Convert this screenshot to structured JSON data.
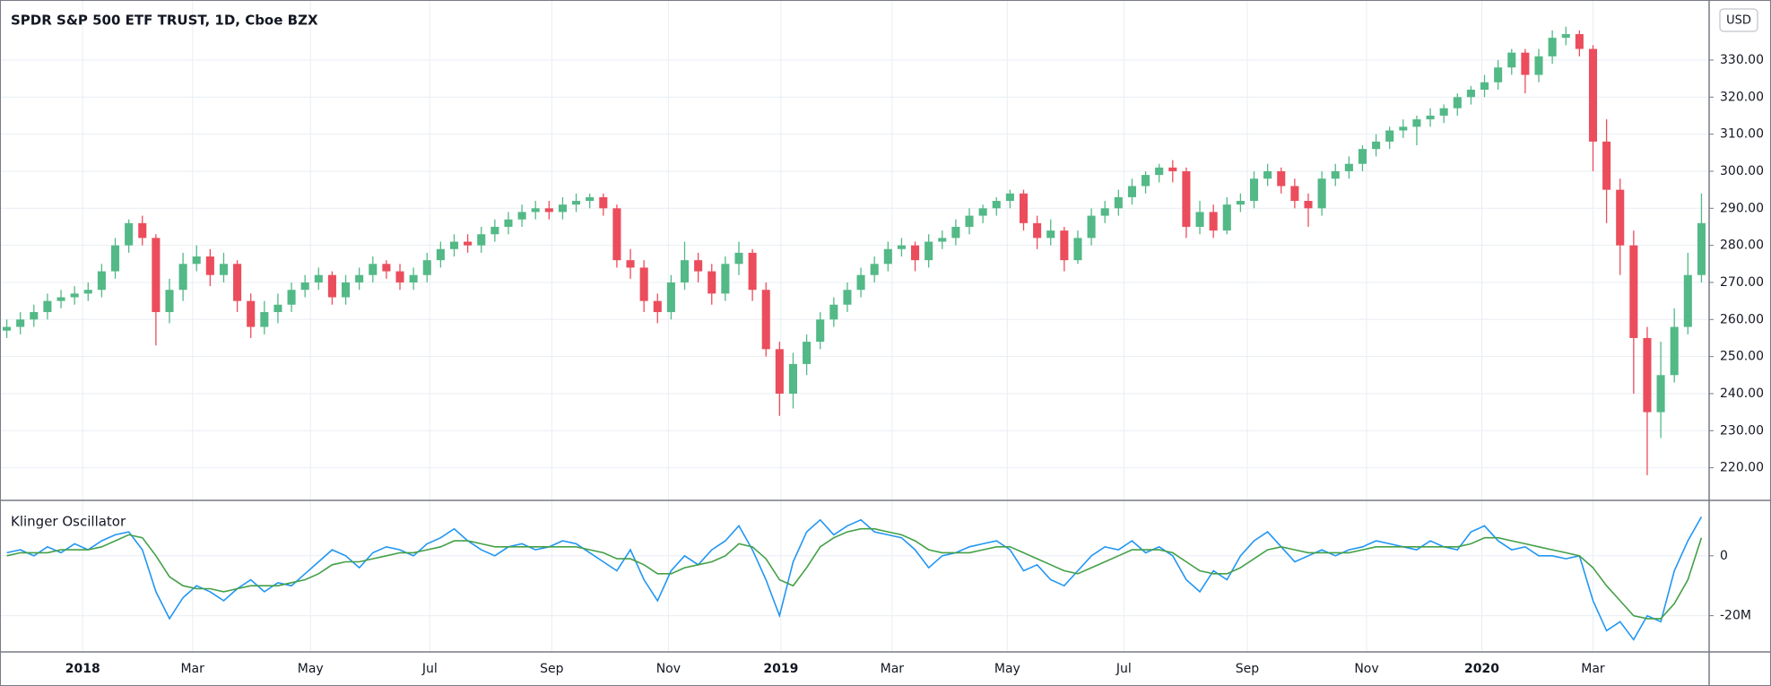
{
  "chart_data": [
    {
      "type": "candlestick",
      "title": "SPDR S&P 500 ETF TRUST, 1D, Cboe BZX",
      "currency": "USD",
      "up_color": "#53b987",
      "down_color": "#eb4d5c",
      "grid": true,
      "xlim": [
        0,
        126
      ],
      "xticks": [
        {
          "value": 6.1,
          "label": "2018"
        },
        {
          "value": 14.2,
          "label": "Mar"
        },
        {
          "value": 22.9,
          "label": "May"
        },
        {
          "value": 31.7,
          "label": "Jul"
        },
        {
          "value": 40.7,
          "label": "Sep"
        },
        {
          "value": 49.3,
          "label": "Nov"
        },
        {
          "value": 57.6,
          "label": "2019"
        },
        {
          "value": 65.8,
          "label": "Mar"
        },
        {
          "value": 74.3,
          "label": "May"
        },
        {
          "value": 82.9,
          "label": "Jul"
        },
        {
          "value": 92,
          "label": "Sep"
        },
        {
          "value": 100.8,
          "label": "Nov"
        },
        {
          "value": 109.3,
          "label": "2020"
        },
        {
          "value": 117.5,
          "label": "Mar"
        }
      ],
      "ylim": [
        211.2,
        346.2
      ],
      "yticks": [
        {
          "value": 220,
          "label": "220.00"
        },
        {
          "value": 230,
          "label": "230.00"
        },
        {
          "value": 240,
          "label": "240.00"
        },
        {
          "value": 250,
          "label": "250.00"
        },
        {
          "value": 260,
          "label": "260.00"
        },
        {
          "value": 270,
          "label": "270.00"
        },
        {
          "value": 280,
          "label": "280.00"
        },
        {
          "value": 290,
          "label": "290.00"
        },
        {
          "value": 300,
          "label": "300.00"
        },
        {
          "value": 310,
          "label": "310.00"
        },
        {
          "value": 320,
          "label": "320.00"
        },
        {
          "value": 330,
          "label": "330.00"
        }
      ],
      "open": [
        257,
        258,
        260,
        262,
        265,
        266,
        267,
        268,
        273,
        280,
        286,
        282,
        262,
        268,
        275,
        277,
        272,
        275,
        265,
        258,
        262,
        264,
        268,
        270,
        272,
        266,
        270,
        272,
        275,
        273,
        270,
        272,
        276,
        279,
        281,
        280,
        283,
        285,
        287,
        289,
        290,
        289,
        291,
        292,
        293,
        290,
        276,
        274,
        265,
        262,
        270,
        276,
        273,
        267,
        275,
        278,
        268,
        252,
        240,
        248,
        254,
        260,
        264,
        268,
        272,
        275,
        279,
        280,
        276,
        281,
        282,
        285,
        288,
        290,
        292,
        294,
        286,
        282,
        284,
        276,
        282,
        288,
        290,
        293,
        296,
        299,
        301,
        300,
        285,
        289,
        284,
        291,
        292,
        298,
        300,
        296,
        292,
        290,
        298,
        300,
        302,
        306,
        308,
        311,
        312,
        314,
        315,
        317,
        320,
        322,
        324,
        328,
        332,
        326,
        331,
        336,
        337,
        333,
        308,
        295,
        280,
        255,
        235,
        245,
        258,
        272
      ],
      "high": [
        260,
        262,
        264,
        267,
        268,
        269,
        270,
        275,
        282,
        287,
        288,
        283,
        271,
        278,
        280,
        279,
        278,
        276,
        267,
        265,
        267,
        270,
        272,
        274,
        273,
        272,
        274,
        277,
        276,
        275,
        274,
        278,
        281,
        283,
        283,
        285,
        287,
        289,
        291,
        292,
        292,
        293,
        294,
        294,
        294,
        291,
        279,
        276,
        267,
        272,
        281,
        278,
        275,
        277,
        281,
        279,
        270,
        254,
        251,
        256,
        262,
        266,
        270,
        274,
        277,
        281,
        282,
        281,
        283,
        284,
        287,
        290,
        291,
        293,
        295,
        295,
        288,
        287,
        285,
        284,
        290,
        292,
        295,
        298,
        300,
        302,
        303,
        301,
        292,
        291,
        293,
        294,
        300,
        302,
        301,
        298,
        294,
        300,
        302,
        304,
        307,
        310,
        312,
        314,
        315,
        317,
        318,
        321,
        323,
        326,
        330,
        333,
        333,
        333,
        338,
        339,
        338,
        334,
        314,
        298,
        284,
        258,
        254,
        263,
        278,
        294
      ],
      "low": [
        255,
        256,
        258,
        260,
        263,
        264,
        265,
        266,
        271,
        278,
        280,
        253,
        259,
        265,
        273,
        269,
        270,
        262,
        255,
        256,
        259,
        262,
        266,
        268,
        264,
        264,
        268,
        270,
        271,
        268,
        268,
        270,
        274,
        277,
        278,
        278,
        281,
        283,
        285,
        287,
        287,
        287,
        289,
        290,
        288,
        274,
        271,
        262,
        259,
        260,
        268,
        270,
        264,
        265,
        272,
        265,
        250,
        234,
        236,
        245,
        252,
        258,
        262,
        266,
        270,
        273,
        277,
        273,
        274,
        279,
        280,
        283,
        286,
        288,
        290,
        284,
        279,
        280,
        273,
        275,
        280,
        286,
        288,
        291,
        294,
        297,
        297,
        282,
        283,
        282,
        283,
        289,
        290,
        296,
        294,
        290,
        285,
        288,
        296,
        298,
        300,
        304,
        306,
        309,
        307,
        312,
        313,
        315,
        318,
        320,
        322,
        326,
        321,
        324,
        329,
        334,
        331,
        300,
        286,
        272,
        240,
        218,
        228,
        243,
        256,
        270
      ],
      "close": [
        258,
        260,
        262,
        265,
        266,
        267,
        268,
        273,
        280,
        286,
        282,
        262,
        268,
        275,
        277,
        272,
        275,
        265,
        258,
        262,
        264,
        268,
        270,
        272,
        266,
        270,
        272,
        275,
        273,
        270,
        272,
        276,
        279,
        281,
        280,
        283,
        285,
        287,
        289,
        290,
        289,
        291,
        292,
        293,
        290,
        276,
        274,
        265,
        262,
        270,
        276,
        273,
        267,
        275,
        278,
        268,
        252,
        240,
        248,
        254,
        260,
        264,
        268,
        272,
        275,
        279,
        280,
        276,
        281,
        282,
        285,
        288,
        290,
        292,
        294,
        286,
        282,
        284,
        276,
        282,
        288,
        290,
        293,
        296,
        299,
        301,
        300,
        285,
        289,
        284,
        291,
        292,
        298,
        300,
        296,
        292,
        290,
        298,
        300,
        302,
        306,
        308,
        311,
        312,
        314,
        315,
        317,
        320,
        322,
        324,
        328,
        332,
        326,
        331,
        336,
        337,
        333,
        308,
        295,
        280,
        255,
        235,
        245,
        258,
        272,
        286
      ]
    },
    {
      "type": "line",
      "title": "Klinger Oscillator",
      "grid": true,
      "xlim": [
        0,
        126
      ],
      "ylim": [
        -32.1,
        18.5
      ],
      "yticks": [
        0,
        {
          "value": -20,
          "label": "-20M"
        }
      ],
      "series": [
        {
          "color": "#2196f3",
          "values": [
            1,
            2,
            0,
            3,
            1,
            4,
            2,
            5,
            7,
            8,
            2,
            -12,
            -21,
            -14,
            -10,
            -12,
            -15,
            -11,
            -8,
            -12,
            -9,
            -10,
            -6,
            -2,
            2,
            0,
            -4,
            1,
            3,
            2,
            0,
            4,
            6,
            9,
            5,
            2,
            0,
            3,
            4,
            2,
            3,
            5,
            4,
            1,
            -2,
            -5,
            2,
            -8,
            -15,
            -5,
            0,
            -3,
            2,
            5,
            10,
            2,
            -8,
            -20,
            -2,
            8,
            12,
            7,
            10,
            12,
            8,
            7,
            6,
            2,
            -4,
            0,
            1,
            3,
            4,
            5,
            2,
            -5,
            -3,
            -8,
            -10,
            -5,
            0,
            3,
            2,
            5,
            1,
            3,
            0,
            -8,
            -12,
            -5,
            -8,
            0,
            5,
            8,
            3,
            -2,
            0,
            2,
            0,
            2,
            3,
            5,
            4,
            3,
            2,
            5,
            3,
            2,
            8,
            10,
            5,
            2,
            3,
            0,
            0,
            -1,
            0,
            -15,
            -25,
            -22,
            -28,
            -20,
            -22,
            -5,
            5,
            13
          ]
        },
        {
          "color": "#43a047",
          "values": [
            0,
            1,
            1,
            1,
            2,
            2,
            2,
            3,
            5,
            7,
            6,
            0,
            -7,
            -10,
            -11,
            -11,
            -12,
            -11,
            -10,
            -10,
            -10,
            -9,
            -8,
            -6,
            -3,
            -2,
            -2,
            -1,
            0,
            1,
            1,
            2,
            3,
            5,
            5,
            4,
            3,
            3,
            3,
            3,
            3,
            3,
            3,
            2,
            1,
            -1,
            -1,
            -3,
            -6,
            -6,
            -4,
            -3,
            -2,
            0,
            4,
            3,
            -1,
            -8,
            -10,
            -4,
            3,
            6,
            8,
            9,
            9,
            8,
            7,
            5,
            2,
            1,
            1,
            1,
            2,
            3,
            3,
            1,
            -1,
            -3,
            -5,
            -6,
            -4,
            -2,
            0,
            2,
            2,
            2,
            1,
            -2,
            -5,
            -6,
            -6,
            -4,
            -1,
            2,
            3,
            2,
            1,
            1,
            1,
            1,
            2,
            3,
            3,
            3,
            3,
            3,
            3,
            3,
            4,
            6,
            6,
            5,
            4,
            3,
            2,
            1,
            0,
            -4,
            -10,
            -15,
            -20,
            -21,
            -21,
            -16,
            -8,
            6
          ]
        }
      ]
    }
  ]
}
